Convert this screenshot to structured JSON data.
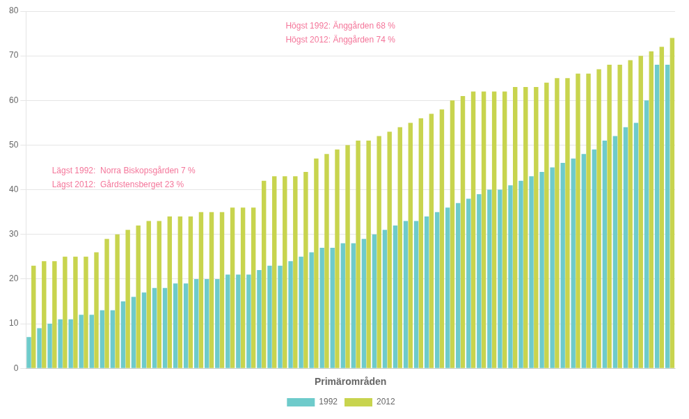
{
  "chart_data": {
    "type": "bar",
    "xlabel": "Primärområden",
    "categories": [
      null,
      null,
      null,
      null,
      null,
      null,
      null,
      null,
      null,
      null,
      null,
      null,
      null,
      null,
      null,
      null,
      null,
      null,
      null,
      null,
      null,
      null,
      null,
      null,
      null,
      null,
      null,
      null,
      null,
      null,
      null,
      null,
      null,
      null,
      null,
      null,
      null,
      null,
      null,
      null,
      null,
      null,
      null,
      null,
      null,
      null,
      null,
      null,
      null,
      null,
      null,
      null,
      null,
      null,
      null,
      null,
      null,
      null,
      null,
      null,
      null,
      null
    ],
    "series": [
      {
        "name": "1992",
        "color": "#6ecbcb",
        "values": [
          7,
          9,
          10,
          11,
          11,
          12,
          12,
          13,
          13,
          15,
          16,
          17,
          18,
          18,
          19,
          19,
          20,
          20,
          20,
          21,
          21,
          21,
          22,
          23,
          23,
          24,
          25,
          26,
          27,
          27,
          28,
          28,
          29,
          30,
          31,
          32,
          33,
          33,
          34,
          35,
          36,
          37,
          38,
          39,
          40,
          40,
          41,
          42,
          43,
          44,
          45,
          46,
          47,
          48,
          49,
          51,
          52,
          54,
          55,
          60,
          68,
          68
        ]
      },
      {
        "name": "2012",
        "color": "#c8d44e",
        "values": [
          23,
          24,
          24,
          25,
          25,
          25,
          26,
          29,
          30,
          31,
          32,
          33,
          33,
          34,
          34,
          34,
          35,
          35,
          35,
          36,
          36,
          36,
          42,
          43,
          43,
          43,
          44,
          47,
          48,
          49,
          50,
          51,
          51,
          52,
          53,
          54,
          55,
          56,
          57,
          58,
          60,
          61,
          62,
          62,
          62,
          62,
          63,
          63,
          63,
          64,
          65,
          65,
          66,
          66,
          67,
          68,
          68,
          69,
          70,
          71,
          72,
          74
        ]
      }
    ],
    "ylim": [
      0,
      80
    ],
    "yticks": [
      0,
      10,
      20,
      30,
      40,
      50,
      60,
      70,
      80
    ],
    "grid": true,
    "legend": "bottom",
    "tick_labels": "y",
    "annotations": [
      {
        "text": "Lägst 1992:  Norra Biskopsgården 7 %\nLägst 2012:  Gårdstensberget 23 %",
        "color": "#f4769a"
      },
      {
        "text": "Högst 1992: Änggården 68 %\nHögst 2012: Änggården 74 %",
        "color": "#f4769a"
      }
    ]
  }
}
